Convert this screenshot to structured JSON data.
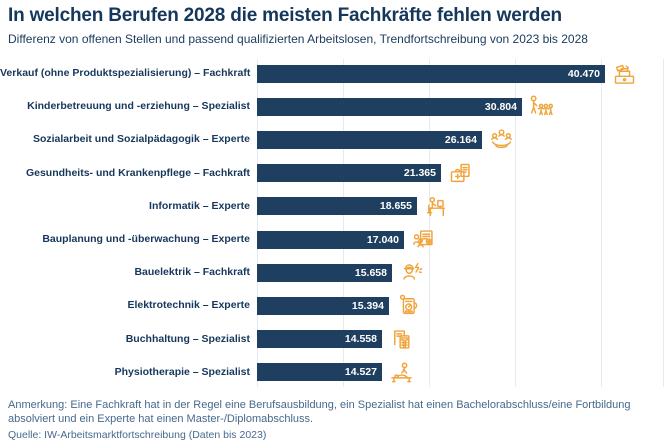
{
  "header": {
    "title": "In welchen Berufen 2028 die meisten Fachkräfte fehlen werden",
    "subtitle": "Differenz von offenen Stellen und passend qualifizierten Arbeitslosen, Trendfortschreibung von 2023 bis 2028"
  },
  "chart_data": {
    "type": "bar",
    "orientation": "horizontal",
    "categories": [
      "Verkauf (ohne Produktspezialisierung) – Fachkraft",
      "Kinderbetreuung und -erziehung – Spezialist",
      "Sozialarbeit und Sozialpädagogik – Experte",
      "Gesundheits- und Krankenpflege – Fachkraft",
      "Informatik – Experte",
      "Bauplanung und -überwachung – Experte",
      "Bauelektrik – Fachkraft",
      "Elektrotechnik – Experte",
      "Buchhaltung – Spezialist",
      "Physiotherapie – Spezialist"
    ],
    "values": [
      40470,
      30804,
      26164,
      21365,
      18655,
      17040,
      15658,
      15394,
      14558,
      14527
    ],
    "value_labels": [
      "40.470",
      "30.804",
      "26.164",
      "21.365",
      "18.655",
      "17.040",
      "15.658",
      "15.394",
      "14.558",
      "14.527"
    ],
    "icons": [
      "cash-register-icon",
      "childcare-icon",
      "social-work-icon",
      "nursing-bag-icon",
      "computer-desk-icon",
      "construction-plan-icon",
      "electrician-icon",
      "multimeter-icon",
      "calculator-icon",
      "physiotherapy-icon"
    ],
    "xlim": [
      0,
      47000
    ],
    "gridlines": [
      0,
      10000,
      20000,
      30000,
      40000
    ],
    "grid_on": true,
    "legend": "none",
    "colors": {
      "bar": "#1E3F5F",
      "category_label": "#16375C",
      "value_label": "#FFFFFF",
      "icon": "#F0A43C",
      "gridline": "#E4EBF1",
      "footnote": "#47698B"
    }
  },
  "footer": {
    "note": "Anmerkung: Eine Fachkraft hat in der Regel eine Berufsausbildung, ein Spezialist hat einen Bachelorabschluss/eine Fortbildung absolviert und ein Experte hat einen Master-/Diplomabschluss.",
    "source": "Quelle: IW-Arbeitsmarktfortschreibung (Daten bis 2023)"
  }
}
